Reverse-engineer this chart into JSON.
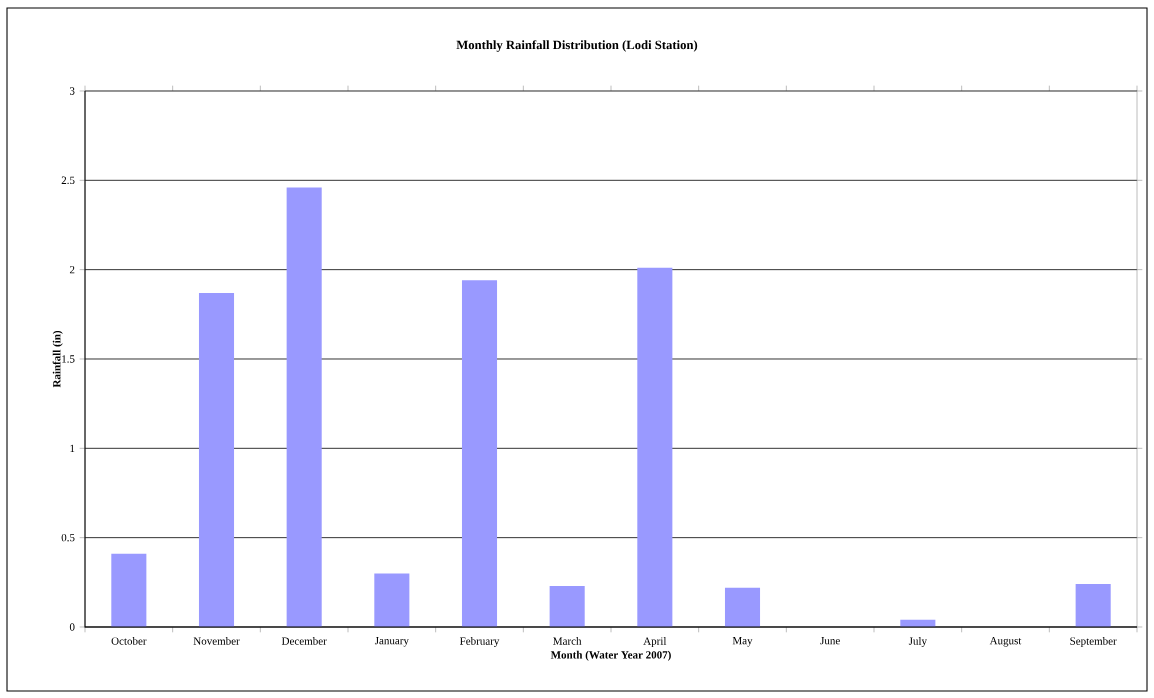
{
  "chart_data": {
    "type": "bar",
    "title": "Monthly Rainfall Distribution (Lodi Station)",
    "xlabel": "Month (Water Year 2007)",
    "ylabel": "Rainfall (in)",
    "categories": [
      "October",
      "November",
      "December",
      "January",
      "February",
      "March",
      "April",
      "May",
      "June",
      "July",
      "August",
      "September"
    ],
    "values": [
      0.41,
      1.87,
      2.46,
      0.3,
      1.94,
      0.23,
      2.01,
      0.22,
      0,
      0.04,
      0,
      0.24
    ],
    "color": "#9999ff",
    "ylim": [
      0,
      3
    ],
    "yticks": [
      0,
      0.5,
      1,
      1.5,
      2,
      2.5,
      3
    ],
    "grid": "y"
  }
}
